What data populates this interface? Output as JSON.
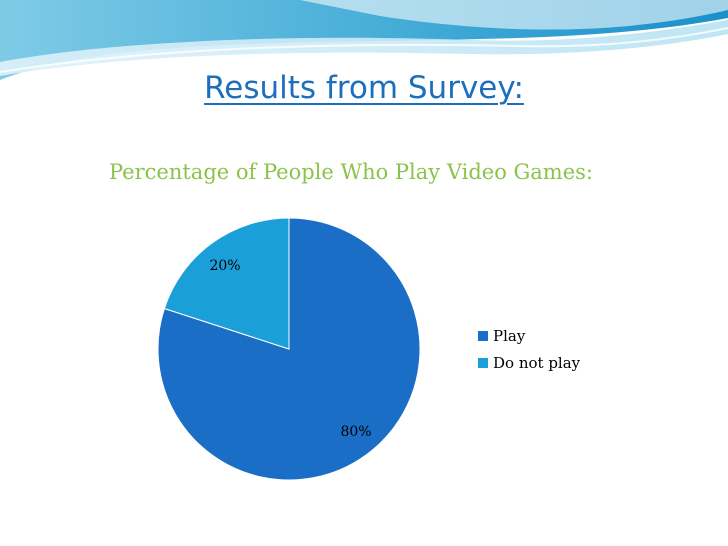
{
  "slide": {
    "title": "Results from Survey:",
    "subtitle": "Percentage of People Who Play Video Games:"
  },
  "colors": {
    "title": "#1c6fbd",
    "subtitle": "#8bc34a",
    "play": "#1a6ec5",
    "do_not_play": "#1a9fd8"
  },
  "chart_data": {
    "type": "pie",
    "title": "",
    "categories": [
      "Play",
      "Do not play"
    ],
    "values": [
      80,
      20
    ],
    "data_labels": [
      "80%",
      "20%"
    ],
    "colors": [
      "#1a6ec5",
      "#1a9fd8"
    ],
    "legend": {
      "position": "right",
      "entries": [
        "Play",
        "Do not play"
      ]
    }
  }
}
